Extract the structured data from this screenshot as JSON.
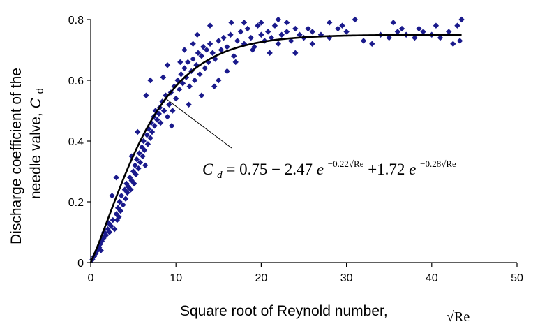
{
  "chart_data": {
    "type": "scatter",
    "title": "",
    "xlabel": "Square root of Reynold number,",
    "xlabel_symbol": "√Re",
    "ylabel_line1": "Discharge coefficient of the",
    "ylabel_line2": "needle valve,",
    "ylabel_symbol": "C",
    "ylabel_symbol_sub": "d",
    "xlim": [
      0,
      50
    ],
    "ylim": [
      0,
      0.8
    ],
    "xticks": [
      "0",
      "10",
      "20",
      "30",
      "40",
      "50"
    ],
    "yticks": [
      "0",
      "0.2",
      "0.4",
      "0.6",
      "0.8"
    ],
    "grid": false,
    "legend": "none",
    "marker_color": "#1a1a8c",
    "line_color": "#000000",
    "equation": {
      "lhs": "C",
      "lhs_sub": "d",
      "eq": " = 0.75 − 2.47",
      "e1": "e",
      "exp1": "−0.22√Re",
      "plus": " +1.72",
      "e2": "e",
      "exp2": "−0.28√Re"
    },
    "fit": {
      "a": 0.75,
      "b": -2.47,
      "k1": 0.22,
      "c": 1.72,
      "k2": 0.28
    },
    "points": [
      [
        0.2,
        0.01
      ],
      [
        0.4,
        0.02
      ],
      [
        0.6,
        0.03
      ],
      [
        0.8,
        0.04
      ],
      [
        1.0,
        0.05
      ],
      [
        1.1,
        0.06
      ],
      [
        1.2,
        0.04
      ],
      [
        1.3,
        0.07
      ],
      [
        1.5,
        0.08
      ],
      [
        1.6,
        0.1
      ],
      [
        1.8,
        0.09
      ],
      [
        2.0,
        0.11
      ],
      [
        2.1,
        0.13
      ],
      [
        2.2,
        0.1
      ],
      [
        2.4,
        0.12
      ],
      [
        2.6,
        0.14
      ],
      [
        2.8,
        0.11
      ],
      [
        3.0,
        0.16
      ],
      [
        3.1,
        0.14
      ],
      [
        3.2,
        0.18
      ],
      [
        3.3,
        0.15
      ],
      [
        3.4,
        0.2
      ],
      [
        3.5,
        0.17
      ],
      [
        3.6,
        0.22
      ],
      [
        3.8,
        0.19
      ],
      [
        4.0,
        0.24
      ],
      [
        4.1,
        0.21
      ],
      [
        4.2,
        0.26
      ],
      [
        4.3,
        0.23
      ],
      [
        4.4,
        0.25
      ],
      [
        4.6,
        0.28
      ],
      [
        4.7,
        0.24
      ],
      [
        4.8,
        0.27
      ],
      [
        5.0,
        0.3
      ],
      [
        5.1,
        0.26
      ],
      [
        5.2,
        0.32
      ],
      [
        5.3,
        0.29
      ],
      [
        5.4,
        0.34
      ],
      [
        5.6,
        0.31
      ],
      [
        5.7,
        0.36
      ],
      [
        5.8,
        0.33
      ],
      [
        6.0,
        0.38
      ],
      [
        6.1,
        0.35
      ],
      [
        6.2,
        0.4
      ],
      [
        6.3,
        0.37
      ],
      [
        6.4,
        0.32
      ],
      [
        6.6,
        0.42
      ],
      [
        6.7,
        0.39
      ],
      [
        6.8,
        0.44
      ],
      [
        7.0,
        0.41
      ],
      [
        7.1,
        0.46
      ],
      [
        7.2,
        0.43
      ],
      [
        7.4,
        0.48
      ],
      [
        7.5,
        0.45
      ],
      [
        7.6,
        0.5
      ],
      [
        7.8,
        0.47
      ],
      [
        8.0,
        0.49
      ],
      [
        8.1,
        0.51
      ],
      [
        8.2,
        0.46
      ],
      [
        8.4,
        0.53
      ],
      [
        8.6,
        0.5
      ],
      [
        8.8,
        0.55
      ],
      [
        9.0,
        0.48
      ],
      [
        9.2,
        0.52
      ],
      [
        9.4,
        0.56
      ],
      [
        9.6,
        0.5
      ],
      [
        9.8,
        0.58
      ],
      [
        10.0,
        0.54
      ],
      [
        10.2,
        0.6
      ],
      [
        10.4,
        0.57
      ],
      [
        10.6,
        0.62
      ],
      [
        10.8,
        0.59
      ],
      [
        11.0,
        0.64
      ],
      [
        11.2,
        0.61
      ],
      [
        11.4,
        0.66
      ],
      [
        11.6,
        0.58
      ],
      [
        11.8,
        0.63
      ],
      [
        12.0,
        0.67
      ],
      [
        12.2,
        0.6
      ],
      [
        12.4,
        0.65
      ],
      [
        12.6,
        0.69
      ],
      [
        12.8,
        0.62
      ],
      [
        13.0,
        0.68
      ],
      [
        13.2,
        0.71
      ],
      [
        13.4,
        0.64
      ],
      [
        13.6,
        0.7
      ],
      [
        13.8,
        0.66
      ],
      [
        14.0,
        0.72
      ],
      [
        14.3,
        0.69
      ],
      [
        14.6,
        0.67
      ],
      [
        15.0,
        0.73
      ],
      [
        15.3,
        0.7
      ],
      [
        15.6,
        0.74
      ],
      [
        16.0,
        0.71
      ],
      [
        16.4,
        0.75
      ],
      [
        16.8,
        0.68
      ],
      [
        17.2,
        0.73
      ],
      [
        17.6,
        0.76
      ],
      [
        18.0,
        0.72
      ],
      [
        18.4,
        0.77
      ],
      [
        18.8,
        0.74
      ],
      [
        19.2,
        0.71
      ],
      [
        19.6,
        0.78
      ],
      [
        20.0,
        0.75
      ],
      [
        20.4,
        0.73
      ],
      [
        20.8,
        0.76
      ],
      [
        21.2,
        0.74
      ],
      [
        21.6,
        0.78
      ],
      [
        22.0,
        0.72
      ],
      [
        22.4,
        0.75
      ],
      [
        23.0,
        0.76
      ],
      [
        23.5,
        0.73
      ],
      [
        24.0,
        0.77
      ],
      [
        24.5,
        0.75
      ],
      [
        25.0,
        0.74
      ],
      [
        26.0,
        0.76
      ],
      [
        27.0,
        0.75
      ],
      [
        28.0,
        0.74
      ],
      [
        29.0,
        0.77
      ],
      [
        30.0,
        0.76
      ],
      [
        32.0,
        0.73
      ],
      [
        34.0,
        0.75
      ],
      [
        35.0,
        0.74
      ],
      [
        36.0,
        0.76
      ],
      [
        37.0,
        0.75
      ],
      [
        38.0,
        0.74
      ],
      [
        39.0,
        0.76
      ],
      [
        40.0,
        0.75
      ],
      [
        41.0,
        0.74
      ],
      [
        42.0,
        0.76
      ],
      [
        43.0,
        0.78
      ],
      [
        43.3,
        0.73
      ],
      [
        7.0,
        0.6
      ],
      [
        8.5,
        0.61
      ],
      [
        9.0,
        0.65
      ],
      [
        11.0,
        0.7
      ],
      [
        12.0,
        0.72
      ],
      [
        13.0,
        0.55
      ],
      [
        15.0,
        0.6
      ],
      [
        16.0,
        0.63
      ],
      [
        18.0,
        0.79
      ],
      [
        20.0,
        0.79
      ],
      [
        22.0,
        0.8
      ],
      [
        24.0,
        0.69
      ],
      [
        26.0,
        0.72
      ],
      [
        28.0,
        0.79
      ],
      [
        33.0,
        0.72
      ],
      [
        38.5,
        0.77
      ],
      [
        42.5,
        0.72
      ],
      [
        5.5,
        0.43
      ],
      [
        6.5,
        0.55
      ],
      [
        10.5,
        0.66
      ],
      [
        9.5,
        0.45
      ],
      [
        11.5,
        0.52
      ],
      [
        4.8,
        0.35
      ],
      [
        3.0,
        0.28
      ],
      [
        2.5,
        0.22
      ],
      [
        14.5,
        0.58
      ],
      [
        17.0,
        0.66
      ],
      [
        19.0,
        0.7
      ],
      [
        21.0,
        0.69
      ],
      [
        25.5,
        0.77
      ],
      [
        29.5,
        0.78
      ],
      [
        36.5,
        0.77
      ],
      [
        40.5,
        0.78
      ],
      [
        12.5,
        0.75
      ],
      [
        14.0,
        0.78
      ],
      [
        16.5,
        0.79
      ],
      [
        23.0,
        0.79
      ],
      [
        31.0,
        0.8
      ],
      [
        35.5,
        0.79
      ],
      [
        43.5,
        0.8
      ]
    ]
  }
}
